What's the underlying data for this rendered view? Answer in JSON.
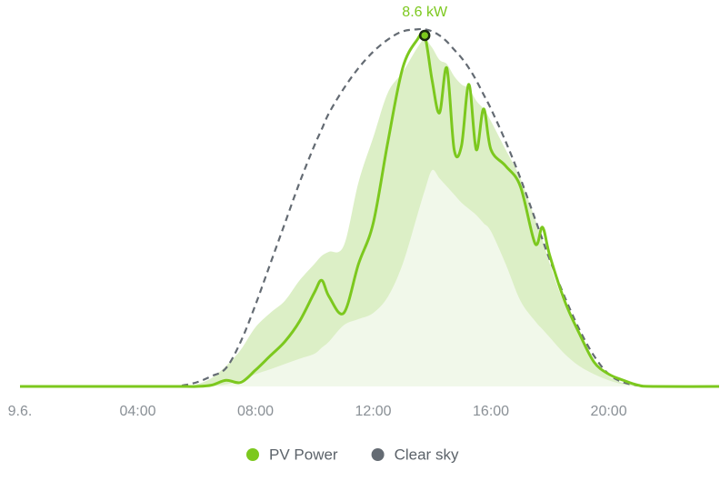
{
  "chart_data": {
    "type": "line",
    "x": [
      0,
      5,
      5.5,
      6,
      6.5,
      7,
      7.5,
      8,
      8.5,
      9,
      9.5,
      10,
      10.25,
      10.5,
      11,
      11.5,
      12,
      12.5,
      13,
      13.5,
      13.75,
      14,
      14.25,
      14.5,
      14.75,
      15,
      15.25,
      15.5,
      15.75,
      16,
      16.5,
      17,
      17.5,
      17.75,
      18,
      18.5,
      19,
      19.5,
      20,
      20.5,
      21,
      21.5,
      23.75
    ],
    "series": [
      {
        "name": "PV Power",
        "color": "#7cc81e",
        "values": [
          0,
          0,
          0,
          0,
          0.03,
          0.15,
          0.1,
          0.4,
          0.75,
          1.1,
          1.6,
          2.3,
          2.6,
          2.2,
          1.8,
          3.0,
          4.0,
          6.0,
          7.8,
          8.5,
          8.6,
          7.5,
          6.7,
          7.8,
          5.8,
          5.9,
          7.4,
          5.8,
          6.8,
          5.8,
          5.4,
          4.9,
          3.5,
          3.9,
          3.2,
          2.1,
          1.3,
          0.6,
          0.3,
          0.15,
          0.03,
          0,
          0
        ]
      },
      {
        "name": "Clear sky",
        "color": "#646b73",
        "dashed": true,
        "values": [
          null,
          null,
          0.02,
          0.1,
          0.25,
          0.45,
          1.1,
          2.0,
          3.0,
          4.0,
          5.0,
          5.9,
          6.3,
          6.7,
          7.3,
          7.8,
          8.2,
          8.5,
          8.7,
          8.75,
          8.75,
          8.7,
          8.6,
          8.45,
          8.25,
          8.05,
          7.8,
          7.5,
          7.15,
          6.8,
          6.0,
          5.1,
          4.1,
          3.6,
          3.1,
          2.2,
          1.4,
          0.75,
          0.3,
          0.1,
          0.02,
          null,
          null
        ]
      }
    ],
    "forecast_range": {
      "color": "#dcefc6",
      "inner_color": "#f1f8ea",
      "high": [
        null,
        null,
        0,
        0.05,
        0.2,
        0.5,
        0.9,
        1.45,
        1.8,
        2.1,
        2.6,
        3.0,
        3.2,
        3.3,
        3.45,
        5.0,
        6.1,
        7.2,
        7.7,
        8.3,
        8.5,
        8.3,
        8.0,
        7.9,
        7.6,
        7.4,
        7.3,
        7.0,
        6.8,
        6.5,
        5.8,
        5.1,
        4.1,
        3.6,
        3.0,
        2.0,
        1.3,
        0.6,
        0.25,
        0.08,
        0,
        null,
        null
      ],
      "low": [
        null,
        null,
        0,
        0,
        0.02,
        0.05,
        0.15,
        0.3,
        0.42,
        0.55,
        0.68,
        0.8,
        0.95,
        1.1,
        1.5,
        1.65,
        1.8,
        2.2,
        3.0,
        4.2,
        4.8,
        5.3,
        5.1,
        4.9,
        4.7,
        4.5,
        4.35,
        4.2,
        4.0,
        3.8,
        3.0,
        2.1,
        1.6,
        1.4,
        1.2,
        0.8,
        0.5,
        0.3,
        0.15,
        0.05,
        0,
        null,
        null
      ]
    },
    "annotation": {
      "x": 13.75,
      "value": 8.6,
      "label": "8.6 kW"
    },
    "xlim": [
      0,
      23.75
    ],
    "ylim": [
      0,
      9
    ],
    "xticks": [
      {
        "value": 0,
        "label": "9.6."
      },
      {
        "value": 4,
        "label": "04:00"
      },
      {
        "value": 8,
        "label": "08:00"
      },
      {
        "value": 12,
        "label": "12:00"
      },
      {
        "value": 16,
        "label": "16:00"
      },
      {
        "value": 20,
        "label": "20:00"
      }
    ],
    "legend": "bottom"
  }
}
